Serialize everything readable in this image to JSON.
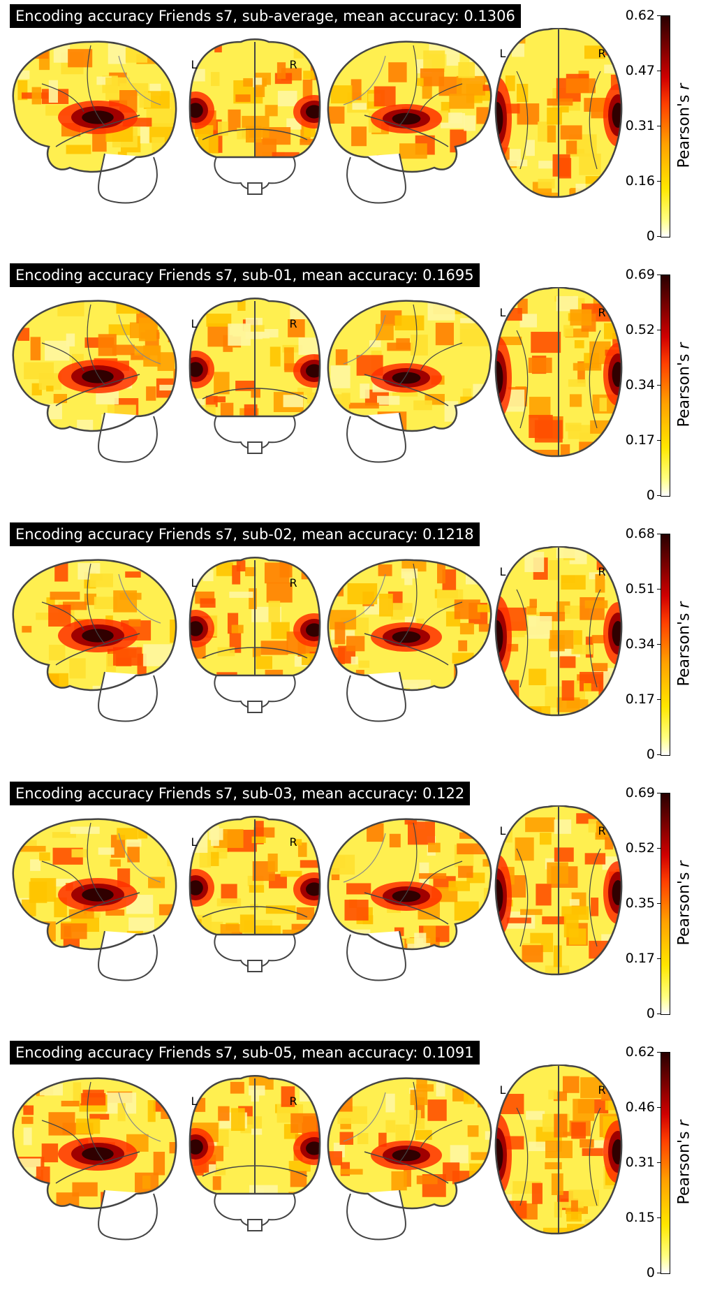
{
  "colorbar_label_prefix": "Pearson's",
  "colorbar_label_var": "r",
  "hemisphere_labels": {
    "left": "L",
    "right": "R"
  },
  "panels": [
    {
      "title": "Encoding accuracy Friends s7, sub-average, mean accuracy: 0.1306",
      "ticks": [
        "0.62",
        "0.47",
        "0.31",
        "0.16",
        "0"
      ]
    },
    {
      "title": "Encoding accuracy Friends s7, sub-01, mean accuracy: 0.1695",
      "ticks": [
        "0.69",
        "0.52",
        "0.34",
        "0.17",
        "0"
      ]
    },
    {
      "title": "Encoding accuracy Friends s7, sub-02, mean accuracy: 0.1218",
      "ticks": [
        "0.68",
        "0.51",
        "0.34",
        "0.17",
        "0"
      ]
    },
    {
      "title": "Encoding accuracy Friends s7, sub-03, mean accuracy: 0.122",
      "ticks": [
        "0.69",
        "0.52",
        "0.35",
        "0.17",
        "0"
      ]
    },
    {
      "title": "Encoding accuracy Friends s7, sub-05, mean accuracy: 0.1091",
      "ticks": [
        "0.62",
        "0.46",
        "0.31",
        "0.15",
        "0"
      ]
    }
  ],
  "colormap": [
    "#ffffff",
    "#ffff80",
    "#ffe600",
    "#ffa000",
    "#ff4000",
    "#d00000",
    "#7a0000",
    "#280000"
  ]
}
